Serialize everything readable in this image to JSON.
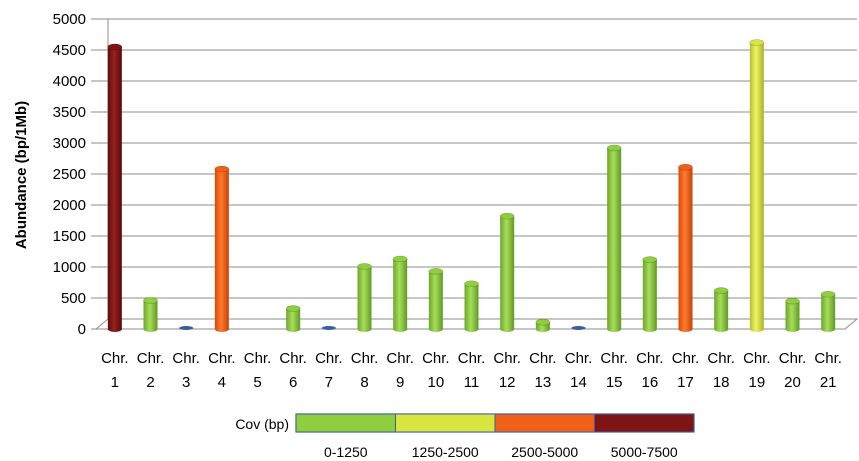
{
  "chart_data": {
    "type": "bar",
    "title": "",
    "xlabel": "",
    "ylabel": "Abundance (bp/1Mb)",
    "ylim": [
      0,
      5000
    ],
    "yticks": [
      0,
      500,
      1000,
      1500,
      2000,
      2500,
      3000,
      3500,
      4000,
      4500,
      5000
    ],
    "grid": true,
    "categories": [
      {
        "line1": "Chr.",
        "line2": "1"
      },
      {
        "line1": "Chr.",
        "line2": "2"
      },
      {
        "line1": "Chr.",
        "line2": "3"
      },
      {
        "line1": "Chr.",
        "line2": "4"
      },
      {
        "line1": "Chr.",
        "line2": "5"
      },
      {
        "line1": "Chr.",
        "line2": "6"
      },
      {
        "line1": "Chr.",
        "line2": "7"
      },
      {
        "line1": "Chr.",
        "line2": "8"
      },
      {
        "line1": "Chr.",
        "line2": "9"
      },
      {
        "line1": "Chr.",
        "line2": "10"
      },
      {
        "line1": "Chr.",
        "line2": "11"
      },
      {
        "line1": "Chr.",
        "line2": "12"
      },
      {
        "line1": "Chr.",
        "line2": "13"
      },
      {
        "line1": "Chr.",
        "line2": "14"
      },
      {
        "line1": "Chr.",
        "line2": "15"
      },
      {
        "line1": "Chr.",
        "line2": "16"
      },
      {
        "line1": "Chr.",
        "line2": "17"
      },
      {
        "line1": "Chr.",
        "line2": "18"
      },
      {
        "line1": "Chr.",
        "line2": "19"
      },
      {
        "line1": "Chr.",
        "line2": "20"
      },
      {
        "line1": "Chr.",
        "line2": "21"
      }
    ],
    "values": [
      4550,
      460,
      0,
      2580,
      0,
      330,
      0,
      1010,
      1130,
      930,
      730,
      1820,
      110,
      0,
      2920,
      1120,
      2610,
      620,
      4620,
      450,
      560
    ],
    "value_class": [
      3,
      0,
      0,
      2,
      0,
      0,
      0,
      0,
      0,
      0,
      0,
      0,
      0,
      0,
      0,
      0,
      2,
      0,
      1,
      0,
      0
    ],
    "legend": {
      "title": "Cov (bp)",
      "placement": "bottom",
      "entries": [
        {
          "label": "0-1250",
          "color": "#8fce3d"
        },
        {
          "label": "1250-2500",
          "color": "#d9e640"
        },
        {
          "label": "2500-5000",
          "color": "#f06018"
        },
        {
          "label": "5000-7500",
          "color": "#7f1414"
        }
      ]
    },
    "zero_marker_color": "#3a5fa0"
  }
}
